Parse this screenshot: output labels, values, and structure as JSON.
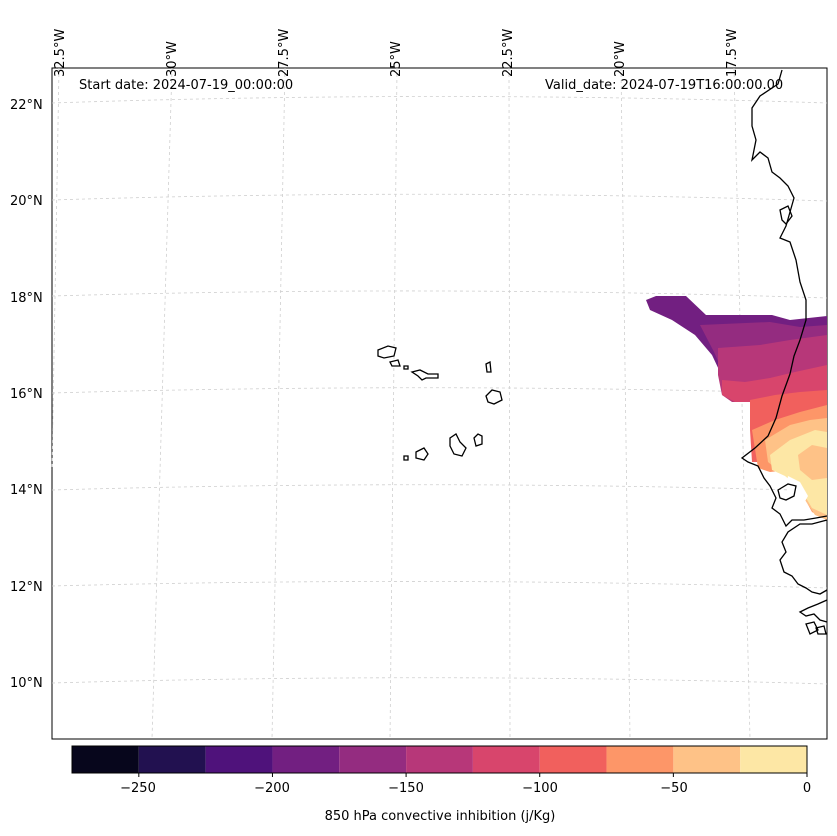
{
  "header": {
    "start_date": "Start date: 2024-07-19_00:00:00",
    "valid_date": "Valid_date: 2024-07-19T16:00:00.00"
  },
  "longitude_labels": [
    "32.5°W",
    "30°W",
    "27.5°W",
    "25°W",
    "22.5°W",
    "20°W",
    "17.5°W"
  ],
  "latitude_labels": [
    "22°N",
    "20°N",
    "18°N",
    "16°N",
    "14°N",
    "12°N",
    "10°N"
  ],
  "colorbar": {
    "title": "850 hPa convective inhibition (j/Kg)",
    "tick_labels": [
      "−250",
      "−200",
      "−150",
      "−100",
      "−50",
      "0"
    ],
    "levels": [
      -275,
      -250,
      -225,
      -200,
      -175,
      -150,
      -125,
      -100,
      -75,
      -50,
      -25,
      0
    ],
    "colors": [
      "#07061c",
      "#221150",
      "#4f127b",
      "#721f81",
      "#942c80",
      "#b73779",
      "#d8456c",
      "#f1605d",
      "#fd9668",
      "#fec287",
      "#fde7a5"
    ]
  },
  "chart_data": {
    "type": "filled-contour map",
    "variable": "850 hPa convective inhibition",
    "units": "j/Kg",
    "region": "Cape Verde islands and West African coast (Senegal/Mauritania)",
    "lon_range": [
      "32.5°W",
      "16°W"
    ],
    "lat_range": [
      "9°N",
      "22.5°N"
    ],
    "filled_area": "coastal West Africa ~13.5°N–18°N, values from about −175 inland-west to near 0 over land"
  }
}
